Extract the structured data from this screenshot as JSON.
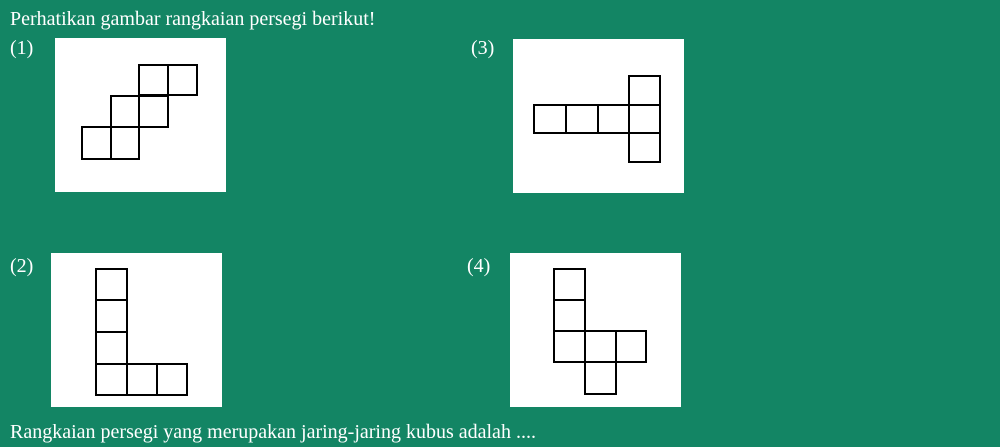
{
  "question": {
    "title": "Perhatikan gambar rangkaian persegi berikut!",
    "footer": "Rangkaian persegi yang merupakan jaring-jaring kubus adalah ...."
  },
  "figures": [
    {
      "label": "(1)"
    },
    {
      "label": "(2)"
    },
    {
      "label": "(3)"
    },
    {
      "label": "(4)"
    }
  ]
}
